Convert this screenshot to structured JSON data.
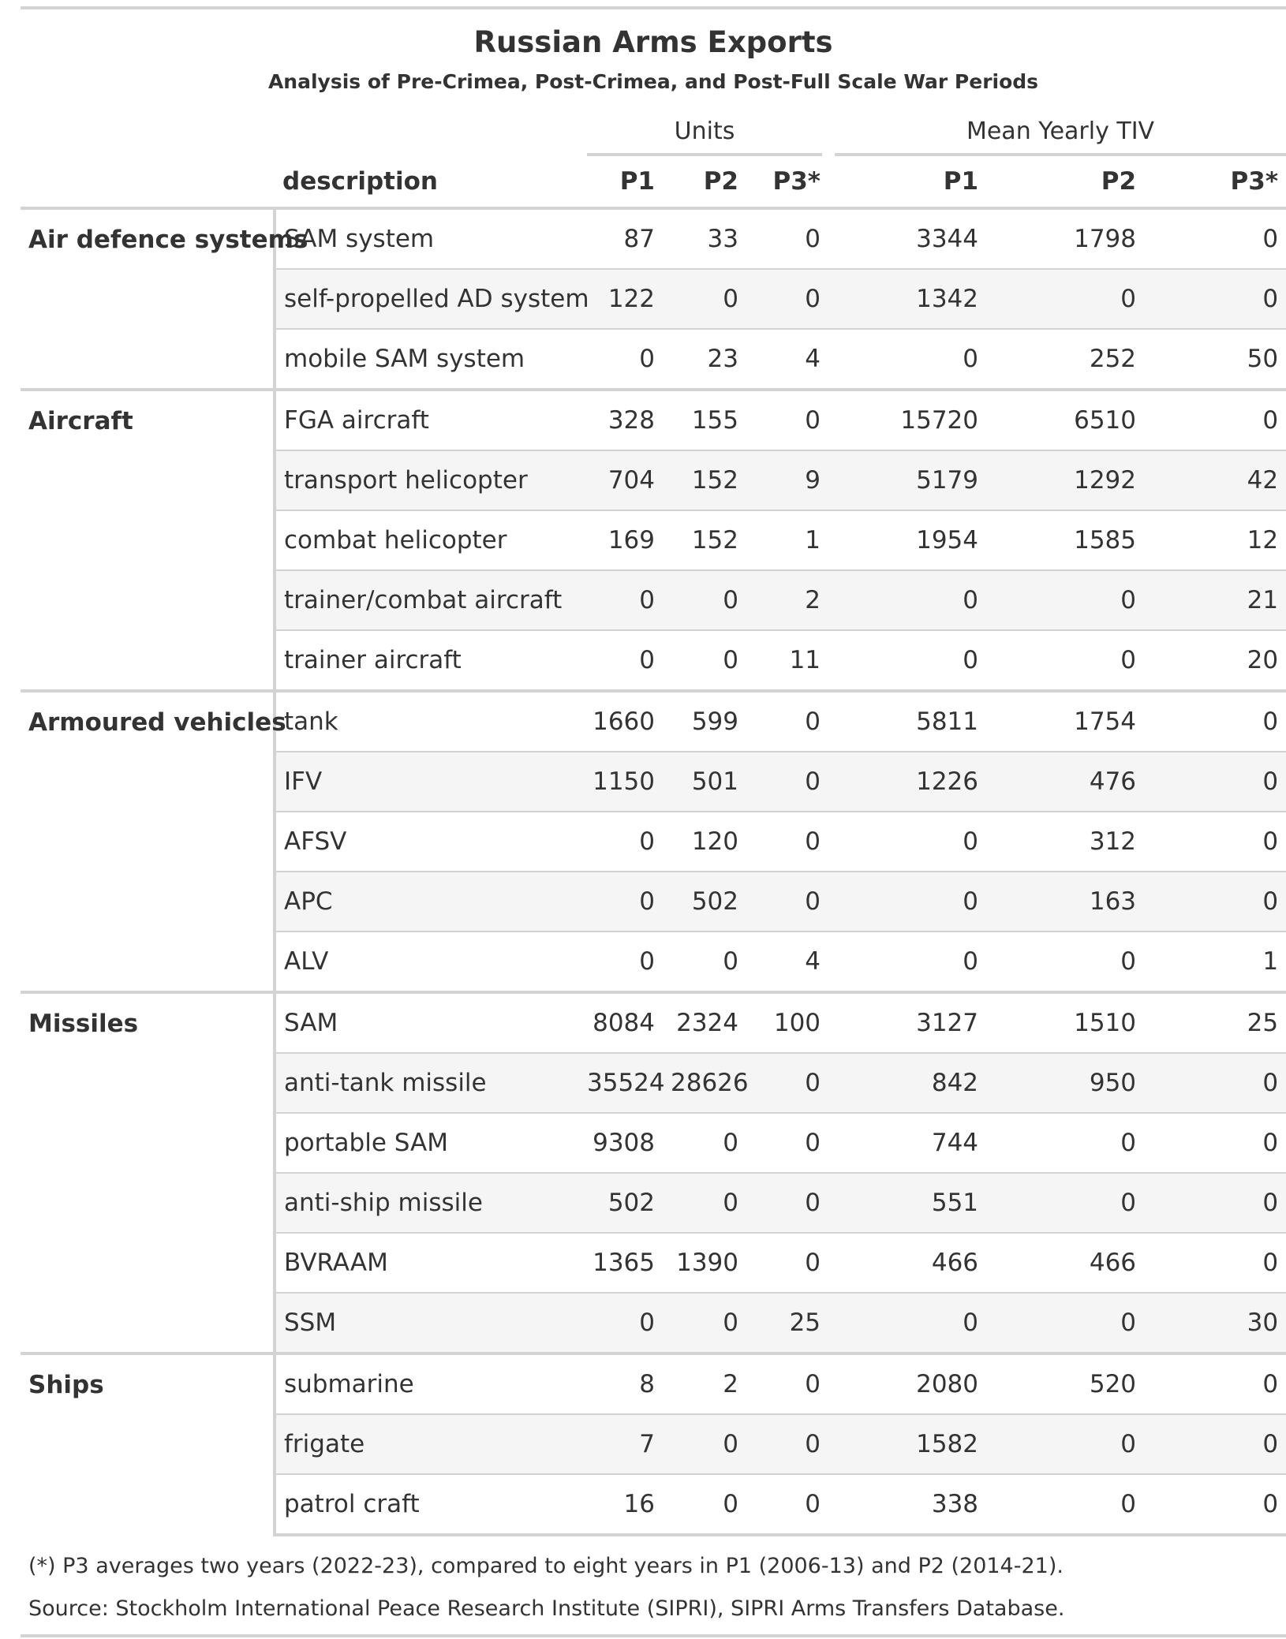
{
  "title": "Russian Arms Exports",
  "subtitle": "Analysis of Pre-Crimea, Post-Crimea, and Post-Full Scale War Periods",
  "spanners": {
    "units": "Units",
    "tiv": "Mean Yearly TIV"
  },
  "columns": {
    "description": "description",
    "p1": "P1",
    "p2": "P2",
    "p3": "P3*"
  },
  "groups": [
    {
      "name": "Air defence systems",
      "rows": [
        {
          "description": "SAM system",
          "units": [
            "87",
            "33",
            "0"
          ],
          "tiv": [
            "3344",
            "1798",
            "0"
          ]
        },
        {
          "description": "self-propelled AD system",
          "units": [
            "122",
            "0",
            "0"
          ],
          "tiv": [
            "1342",
            "0",
            "0"
          ]
        },
        {
          "description": "mobile SAM system",
          "units": [
            "0",
            "23",
            "4"
          ],
          "tiv": [
            "0",
            "252",
            "50"
          ]
        }
      ]
    },
    {
      "name": "Aircraft",
      "rows": [
        {
          "description": "FGA aircraft",
          "units": [
            "328",
            "155",
            "0"
          ],
          "tiv": [
            "15720",
            "6510",
            "0"
          ]
        },
        {
          "description": "transport helicopter",
          "units": [
            "704",
            "152",
            "9"
          ],
          "tiv": [
            "5179",
            "1292",
            "42"
          ]
        },
        {
          "description": "combat helicopter",
          "units": [
            "169",
            "152",
            "1"
          ],
          "tiv": [
            "1954",
            "1585",
            "12"
          ]
        },
        {
          "description": "trainer/combat aircraft",
          "units": [
            "0",
            "0",
            "2"
          ],
          "tiv": [
            "0",
            "0",
            "21"
          ]
        },
        {
          "description": "trainer aircraft",
          "units": [
            "0",
            "0",
            "11"
          ],
          "tiv": [
            "0",
            "0",
            "20"
          ]
        }
      ]
    },
    {
      "name": "Armoured vehicles",
      "rows": [
        {
          "description": "tank",
          "units": [
            "1660",
            "599",
            "0"
          ],
          "tiv": [
            "5811",
            "1754",
            "0"
          ]
        },
        {
          "description": "IFV",
          "units": [
            "1150",
            "501",
            "0"
          ],
          "tiv": [
            "1226",
            "476",
            "0"
          ]
        },
        {
          "description": "AFSV",
          "units": [
            "0",
            "120",
            "0"
          ],
          "tiv": [
            "0",
            "312",
            "0"
          ]
        },
        {
          "description": "APC",
          "units": [
            "0",
            "502",
            "0"
          ],
          "tiv": [
            "0",
            "163",
            "0"
          ]
        },
        {
          "description": "ALV",
          "units": [
            "0",
            "0",
            "4"
          ],
          "tiv": [
            "0",
            "0",
            "1"
          ]
        }
      ]
    },
    {
      "name": "Missiles",
      "rows": [
        {
          "description": "SAM",
          "units": [
            "8084",
            "2324",
            "100"
          ],
          "tiv": [
            "3127",
            "1510",
            "25"
          ]
        },
        {
          "description": "anti-tank missile",
          "units": [
            "35524",
            "28626",
            "0"
          ],
          "tiv": [
            "842",
            "950",
            "0"
          ]
        },
        {
          "description": "portable SAM",
          "units": [
            "9308",
            "0",
            "0"
          ],
          "tiv": [
            "744",
            "0",
            "0"
          ]
        },
        {
          "description": "anti-ship missile",
          "units": [
            "502",
            "0",
            "0"
          ],
          "tiv": [
            "551",
            "0",
            "0"
          ]
        },
        {
          "description": "BVRAAM",
          "units": [
            "1365",
            "1390",
            "0"
          ],
          "tiv": [
            "466",
            "466",
            "0"
          ]
        },
        {
          "description": "SSM",
          "units": [
            "0",
            "0",
            "25"
          ],
          "tiv": [
            "0",
            "0",
            "30"
          ]
        }
      ]
    },
    {
      "name": "Ships",
      "rows": [
        {
          "description": "submarine",
          "units": [
            "8",
            "2",
            "0"
          ],
          "tiv": [
            "2080",
            "520",
            "0"
          ]
        },
        {
          "description": "frigate",
          "units": [
            "7",
            "0",
            "0"
          ],
          "tiv": [
            "1582",
            "0",
            "0"
          ]
        },
        {
          "description": "patrol craft",
          "units": [
            "16",
            "0",
            "0"
          ],
          "tiv": [
            "338",
            "0",
            "0"
          ]
        }
      ]
    }
  ],
  "footnote": "(*) P3 averages two years (2022-23), compared to eight years in P1 (2006-13) and P2 (2014-21).",
  "source": "Source: Stockholm International Peace Research Institute (SIPRI), SIPRI Arms Transfers Database.",
  "colors": {
    "rule": "#d3d3d3",
    "stripe": "#f5f5f5",
    "text": "#333333"
  }
}
